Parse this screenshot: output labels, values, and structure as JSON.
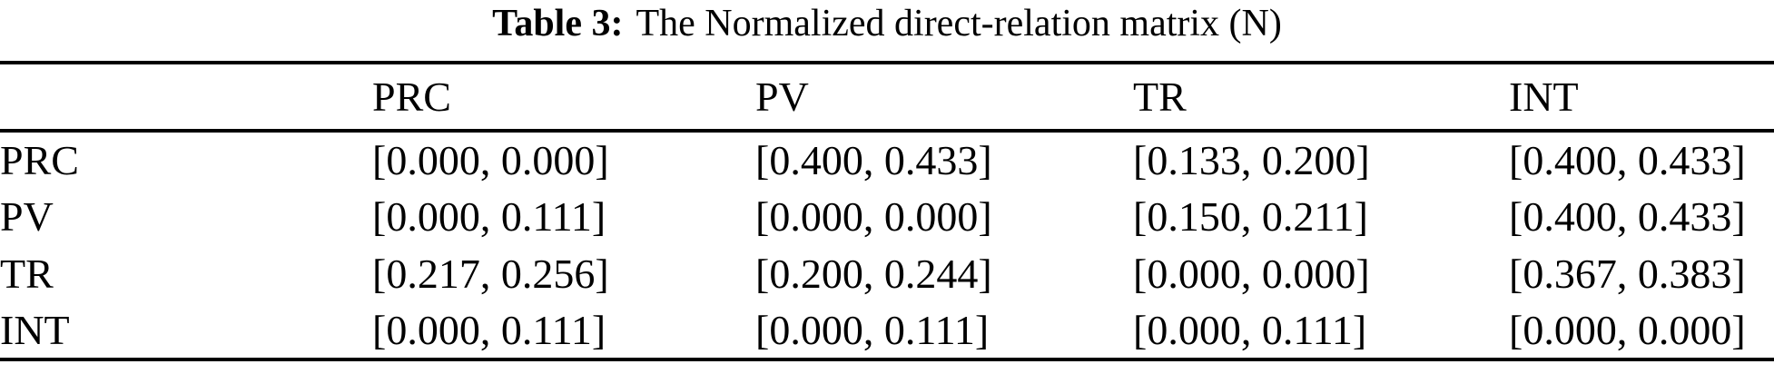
{
  "colors": {
    "text": "#000000",
    "background": "#ffffff",
    "rule": "#000000"
  },
  "caption": {
    "label": "Table 3:",
    "text": "The Normalized direct-relation matrix (N)"
  },
  "table": {
    "columns": [
      "",
      "PRC",
      "PV",
      "TR",
      "INT"
    ],
    "rows": [
      {
        "label": "PRC",
        "cells": [
          "[0.000, 0.000]",
          "[0.400, 0.433]",
          "[0.133, 0.200]",
          "[0.400, 0.433]"
        ]
      },
      {
        "label": "PV",
        "cells": [
          "[0.000, 0.111]",
          "[0.000, 0.000]",
          "[0.150, 0.211]",
          "[0.400, 0.433]"
        ]
      },
      {
        "label": "TR",
        "cells": [
          "[0.217, 0.256]",
          "[0.200, 0.244]",
          "[0.000, 0.000]",
          "[0.367, 0.383]"
        ]
      },
      {
        "label": "INT",
        "cells": [
          "[0.000, 0.111]",
          "[0.000, 0.111]",
          "[0.000, 0.111]",
          "[0.000, 0.000]"
        ]
      }
    ]
  }
}
